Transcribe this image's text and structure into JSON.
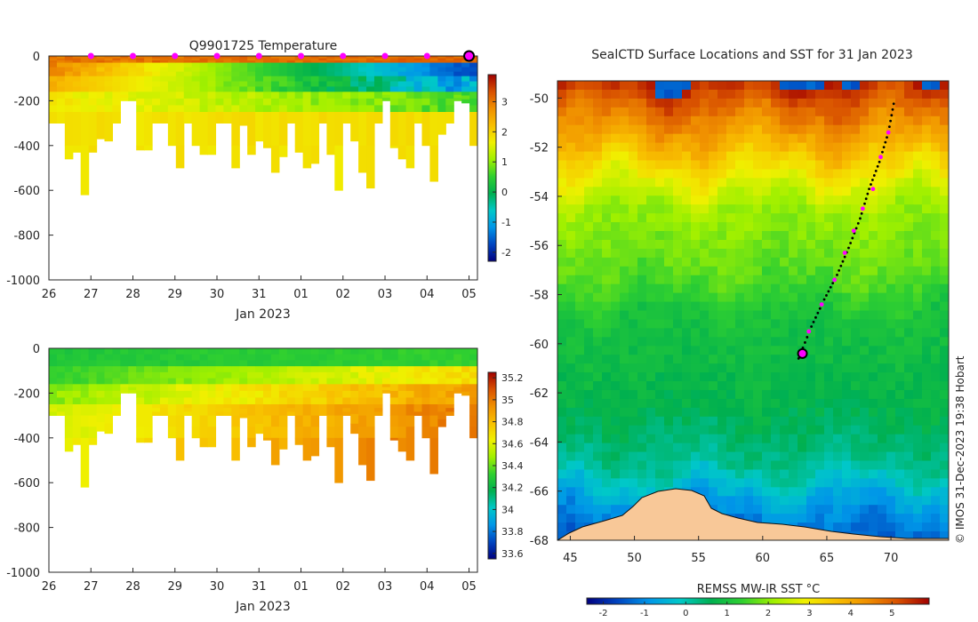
{
  "chart_data": [
    {
      "type": "heatmap",
      "title": "Q9901725  Temperature",
      "xlabel": "Jan 2023",
      "ylabel": "",
      "x_tick_labels": [
        "26",
        "27",
        "28",
        "29",
        "30",
        "31",
        "01",
        "02",
        "03",
        "04",
        "05"
      ],
      "x_range_days": [
        0,
        10.2
      ],
      "ylim": [
        -1000,
        0
      ],
      "y_ticks": [
        0,
        -200,
        -400,
        -600,
        -800,
        -1000
      ],
      "profile_max_depth": [
        300,
        300,
        460,
        430,
        620,
        430,
        370,
        380,
        300,
        200,
        200,
        420,
        420,
        300,
        300,
        400,
        500,
        300,
        400,
        440,
        440,
        300,
        300,
        500,
        310,
        440,
        380,
        410,
        520,
        450,
        300,
        430,
        500,
        480,
        300,
        440,
        600,
        300,
        380,
        520,
        590,
        300,
        200,
        410,
        460,
        500,
        300,
        400,
        560,
        350,
        300,
        200,
        210,
        400
      ],
      "layers_c": [
        {
          "top": 0,
          "bottom": 30,
          "start": [
            2.8,
            3.2
          ],
          "end": [
            3.0,
            3.3
          ]
        },
        {
          "top": 30,
          "bottom": 90,
          "start": [
            2.6,
            3.0
          ],
          "end": [
            -1.6,
            -1.9
          ]
        },
        {
          "top": 90,
          "bottom": 160,
          "start": [
            2.3,
            2.5
          ],
          "end": [
            -0.6,
            -1.6
          ]
        },
        {
          "top": 160,
          "bottom": 250,
          "start": [
            1.6,
            1.9
          ],
          "end": [
            0.4,
            0.9
          ]
        },
        {
          "top": 250,
          "bottom": 400,
          "start": [
            1.7,
            1.9
          ],
          "end": [
            1.8,
            2.0
          ]
        },
        {
          "top": 400,
          "bottom": 1000,
          "start": [
            1.7,
            1.9
          ],
          "end": [
            1.7,
            1.9
          ]
        }
      ],
      "surface_markers_days": [
        1.0,
        2.0,
        3.0,
        4.0,
        5.0,
        6.0,
        7.0,
        8.0,
        9.0
      ],
      "current_position_day": 10.0,
      "colorbar": {
        "label": "",
        "range": [
          -2.3,
          3.9
        ],
        "ticks": [
          -2,
          -1,
          0,
          1,
          2,
          3
        ],
        "colormap": [
          "#000080",
          "#0045c0",
          "#0096e8",
          "#00c8c8",
          "#00b050",
          "#30d030",
          "#a0f000",
          "#f0f000",
          "#f8c000",
          "#f09000",
          "#d85000",
          "#a00000"
        ]
      }
    },
    {
      "type": "heatmap",
      "title": "",
      "xlabel": "Jan 2023",
      "ylabel": "",
      "x_tick_labels": [
        "26",
        "27",
        "28",
        "29",
        "30",
        "31",
        "01",
        "02",
        "03",
        "04",
        "05"
      ],
      "x_range_days": [
        0,
        10.2
      ],
      "ylim": [
        -1000,
        0
      ],
      "y_ticks": [
        0,
        -200,
        -400,
        -600,
        -800,
        -1000
      ],
      "layers_psu": [
        {
          "top": 0,
          "bottom": 80,
          "start": [
            34.25,
            34.3
          ],
          "end": [
            34.3,
            34.35
          ]
        },
        {
          "top": 80,
          "bottom": 160,
          "start": [
            34.3,
            34.35
          ],
          "end": [
            34.65,
            34.75
          ]
        },
        {
          "top": 160,
          "bottom": 250,
          "start": [
            34.4,
            34.5
          ],
          "end": [
            34.85,
            34.95
          ]
        },
        {
          "top": 250,
          "bottom": 400,
          "start": [
            34.55,
            34.6
          ],
          "end": [
            34.95,
            35.05
          ]
        },
        {
          "top": 400,
          "bottom": 1000,
          "start": [
            34.6,
            34.65
          ],
          "end": [
            35.0,
            35.1
          ]
        }
      ],
      "colorbar": {
        "label": "",
        "range": [
          33.55,
          35.25
        ],
        "ticks": [
          33.6,
          33.8,
          34,
          34.2,
          34.4,
          34.6,
          34.8,
          35,
          35.2
        ],
        "colormap": [
          "#000080",
          "#0045c0",
          "#0096e8",
          "#00c8c8",
          "#00b050",
          "#30d030",
          "#a0f000",
          "#f0f000",
          "#f8c000",
          "#f09000",
          "#d85000",
          "#a00000"
        ]
      }
    },
    {
      "type": "heatmap",
      "title": "SealCTD Surface Locations and SST for 31 Jan 2023",
      "xlabel": "",
      "ylabel": "",
      "xlim": [
        44,
        74.5
      ],
      "ylim": [
        -68,
        -49.3
      ],
      "x_ticks": [
        45,
        50,
        55,
        60,
        65,
        70
      ],
      "y_ticks": [
        -50,
        -52,
        -54,
        -56,
        -58,
        -60,
        -62,
        -64,
        -66,
        -68
      ],
      "sst_bands": [
        {
          "lat": -49.3,
          "sst": 5.6
        },
        {
          "lat": -50.8,
          "sst": 4.6
        },
        {
          "lat": -52.0,
          "sst": 3.8
        },
        {
          "lat": -53.2,
          "sst": 2.9
        },
        {
          "lat": -54.5,
          "sst": 2.1
        },
        {
          "lat": -57.0,
          "sst": 1.7
        },
        {
          "lat": -59.0,
          "sst": 1.0
        },
        {
          "lat": -62.5,
          "sst": 0.7
        },
        {
          "lat": -65.0,
          "sst": 0.2
        },
        {
          "lat": -66.6,
          "sst": -0.8
        },
        {
          "lat": -68.0,
          "sst": -1.4
        }
      ],
      "seal_track": {
        "lon": [
          62.8,
          63.8,
          64.8,
          65.8,
          66.7,
          67.6,
          68.3,
          69.1,
          69.8,
          70.3
        ],
        "lat": [
          -60.6,
          -59.3,
          -58.2,
          -57.2,
          -56.1,
          -54.9,
          -53.7,
          -52.6,
          -51.4,
          -50.0
        ],
        "surface_points_lon": [
          63.6,
          64.6,
          65.6,
          66.4,
          67.1,
          67.8,
          68.6,
          69.2,
          69.8
        ],
        "surface_points_lat": [
          -59.5,
          -58.4,
          -57.4,
          -56.3,
          -55.4,
          -54.5,
          -53.7,
          -52.4,
          -51.4
        ],
        "current": {
          "lon": 63.1,
          "lat": -60.4
        }
      },
      "colorbar": {
        "label": "REMSS MW-IR SST °C",
        "range": [
          -2.4,
          5.9
        ],
        "ticks": [
          -2,
          -1,
          0,
          1,
          2,
          3,
          4,
          5
        ],
        "colormap": [
          "#000080",
          "#0045c0",
          "#0096e8",
          "#00c8c8",
          "#00b050",
          "#30d030",
          "#a0f000",
          "#f0f000",
          "#f8c000",
          "#f09000",
          "#d85000",
          "#a00000"
        ]
      }
    }
  ],
  "credit": "© IMOS 31-Dec-2023 19:38 Hobart"
}
